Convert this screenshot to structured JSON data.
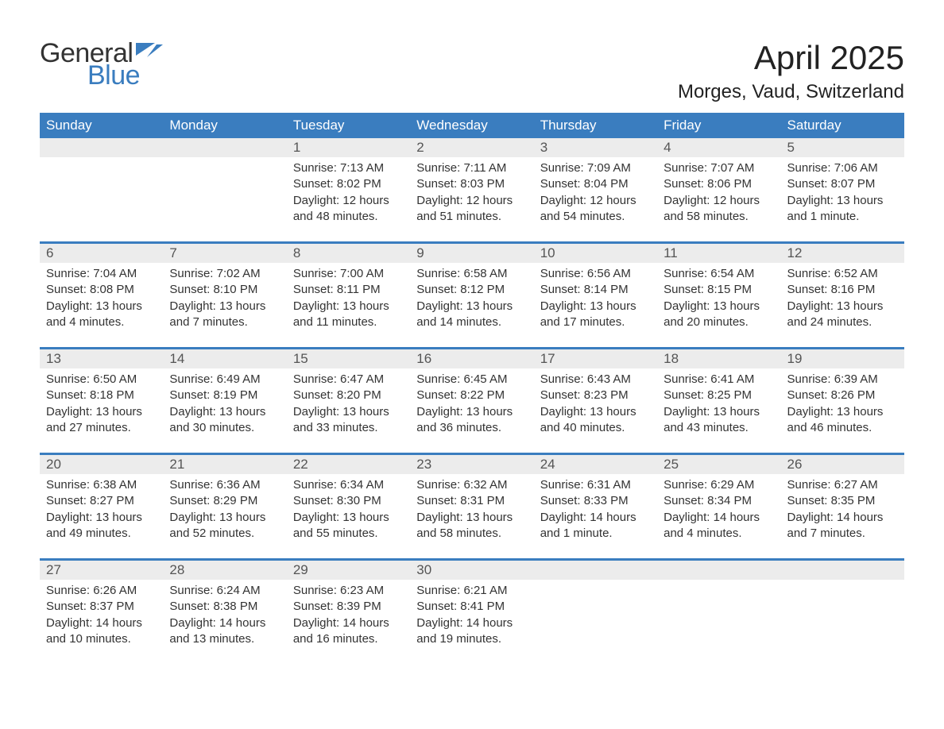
{
  "brand": {
    "word1": "General",
    "word2": "Blue",
    "color_primary": "#3a7dbf",
    "color_text": "#333333"
  },
  "title": "April 2025",
  "location": "Morges, Vaud, Switzerland",
  "header_bg": "#3a7dbf",
  "header_fg": "#ffffff",
  "daynum_bg": "#ececec",
  "weekdays": [
    "Sunday",
    "Monday",
    "Tuesday",
    "Wednesday",
    "Thursday",
    "Friday",
    "Saturday"
  ],
  "weeks": [
    [
      {
        "n": "",
        "sunrise": "",
        "sunset": "",
        "daylight": ""
      },
      {
        "n": "",
        "sunrise": "",
        "sunset": "",
        "daylight": ""
      },
      {
        "n": "1",
        "sunrise": "Sunrise: 7:13 AM",
        "sunset": "Sunset: 8:02 PM",
        "daylight": "Daylight: 12 hours and 48 minutes."
      },
      {
        "n": "2",
        "sunrise": "Sunrise: 7:11 AM",
        "sunset": "Sunset: 8:03 PM",
        "daylight": "Daylight: 12 hours and 51 minutes."
      },
      {
        "n": "3",
        "sunrise": "Sunrise: 7:09 AM",
        "sunset": "Sunset: 8:04 PM",
        "daylight": "Daylight: 12 hours and 54 minutes."
      },
      {
        "n": "4",
        "sunrise": "Sunrise: 7:07 AM",
        "sunset": "Sunset: 8:06 PM",
        "daylight": "Daylight: 12 hours and 58 minutes."
      },
      {
        "n": "5",
        "sunrise": "Sunrise: 7:06 AM",
        "sunset": "Sunset: 8:07 PM",
        "daylight": "Daylight: 13 hours and 1 minute."
      }
    ],
    [
      {
        "n": "6",
        "sunrise": "Sunrise: 7:04 AM",
        "sunset": "Sunset: 8:08 PM",
        "daylight": "Daylight: 13 hours and 4 minutes."
      },
      {
        "n": "7",
        "sunrise": "Sunrise: 7:02 AM",
        "sunset": "Sunset: 8:10 PM",
        "daylight": "Daylight: 13 hours and 7 minutes."
      },
      {
        "n": "8",
        "sunrise": "Sunrise: 7:00 AM",
        "sunset": "Sunset: 8:11 PM",
        "daylight": "Daylight: 13 hours and 11 minutes."
      },
      {
        "n": "9",
        "sunrise": "Sunrise: 6:58 AM",
        "sunset": "Sunset: 8:12 PM",
        "daylight": "Daylight: 13 hours and 14 minutes."
      },
      {
        "n": "10",
        "sunrise": "Sunrise: 6:56 AM",
        "sunset": "Sunset: 8:14 PM",
        "daylight": "Daylight: 13 hours and 17 minutes."
      },
      {
        "n": "11",
        "sunrise": "Sunrise: 6:54 AM",
        "sunset": "Sunset: 8:15 PM",
        "daylight": "Daylight: 13 hours and 20 minutes."
      },
      {
        "n": "12",
        "sunrise": "Sunrise: 6:52 AM",
        "sunset": "Sunset: 8:16 PM",
        "daylight": "Daylight: 13 hours and 24 minutes."
      }
    ],
    [
      {
        "n": "13",
        "sunrise": "Sunrise: 6:50 AM",
        "sunset": "Sunset: 8:18 PM",
        "daylight": "Daylight: 13 hours and 27 minutes."
      },
      {
        "n": "14",
        "sunrise": "Sunrise: 6:49 AM",
        "sunset": "Sunset: 8:19 PM",
        "daylight": "Daylight: 13 hours and 30 minutes."
      },
      {
        "n": "15",
        "sunrise": "Sunrise: 6:47 AM",
        "sunset": "Sunset: 8:20 PM",
        "daylight": "Daylight: 13 hours and 33 minutes."
      },
      {
        "n": "16",
        "sunrise": "Sunrise: 6:45 AM",
        "sunset": "Sunset: 8:22 PM",
        "daylight": "Daylight: 13 hours and 36 minutes."
      },
      {
        "n": "17",
        "sunrise": "Sunrise: 6:43 AM",
        "sunset": "Sunset: 8:23 PM",
        "daylight": "Daylight: 13 hours and 40 minutes."
      },
      {
        "n": "18",
        "sunrise": "Sunrise: 6:41 AM",
        "sunset": "Sunset: 8:25 PM",
        "daylight": "Daylight: 13 hours and 43 minutes."
      },
      {
        "n": "19",
        "sunrise": "Sunrise: 6:39 AM",
        "sunset": "Sunset: 8:26 PM",
        "daylight": "Daylight: 13 hours and 46 minutes."
      }
    ],
    [
      {
        "n": "20",
        "sunrise": "Sunrise: 6:38 AM",
        "sunset": "Sunset: 8:27 PM",
        "daylight": "Daylight: 13 hours and 49 minutes."
      },
      {
        "n": "21",
        "sunrise": "Sunrise: 6:36 AM",
        "sunset": "Sunset: 8:29 PM",
        "daylight": "Daylight: 13 hours and 52 minutes."
      },
      {
        "n": "22",
        "sunrise": "Sunrise: 6:34 AM",
        "sunset": "Sunset: 8:30 PM",
        "daylight": "Daylight: 13 hours and 55 minutes."
      },
      {
        "n": "23",
        "sunrise": "Sunrise: 6:32 AM",
        "sunset": "Sunset: 8:31 PM",
        "daylight": "Daylight: 13 hours and 58 minutes."
      },
      {
        "n": "24",
        "sunrise": "Sunrise: 6:31 AM",
        "sunset": "Sunset: 8:33 PM",
        "daylight": "Daylight: 14 hours and 1 minute."
      },
      {
        "n": "25",
        "sunrise": "Sunrise: 6:29 AM",
        "sunset": "Sunset: 8:34 PM",
        "daylight": "Daylight: 14 hours and 4 minutes."
      },
      {
        "n": "26",
        "sunrise": "Sunrise: 6:27 AM",
        "sunset": "Sunset: 8:35 PM",
        "daylight": "Daylight: 14 hours and 7 minutes."
      }
    ],
    [
      {
        "n": "27",
        "sunrise": "Sunrise: 6:26 AM",
        "sunset": "Sunset: 8:37 PM",
        "daylight": "Daylight: 14 hours and 10 minutes."
      },
      {
        "n": "28",
        "sunrise": "Sunrise: 6:24 AM",
        "sunset": "Sunset: 8:38 PM",
        "daylight": "Daylight: 14 hours and 13 minutes."
      },
      {
        "n": "29",
        "sunrise": "Sunrise: 6:23 AM",
        "sunset": "Sunset: 8:39 PM",
        "daylight": "Daylight: 14 hours and 16 minutes."
      },
      {
        "n": "30",
        "sunrise": "Sunrise: 6:21 AM",
        "sunset": "Sunset: 8:41 PM",
        "daylight": "Daylight: 14 hours and 19 minutes."
      },
      {
        "n": "",
        "sunrise": "",
        "sunset": "",
        "daylight": ""
      },
      {
        "n": "",
        "sunrise": "",
        "sunset": "",
        "daylight": ""
      },
      {
        "n": "",
        "sunrise": "",
        "sunset": "",
        "daylight": ""
      }
    ]
  ]
}
